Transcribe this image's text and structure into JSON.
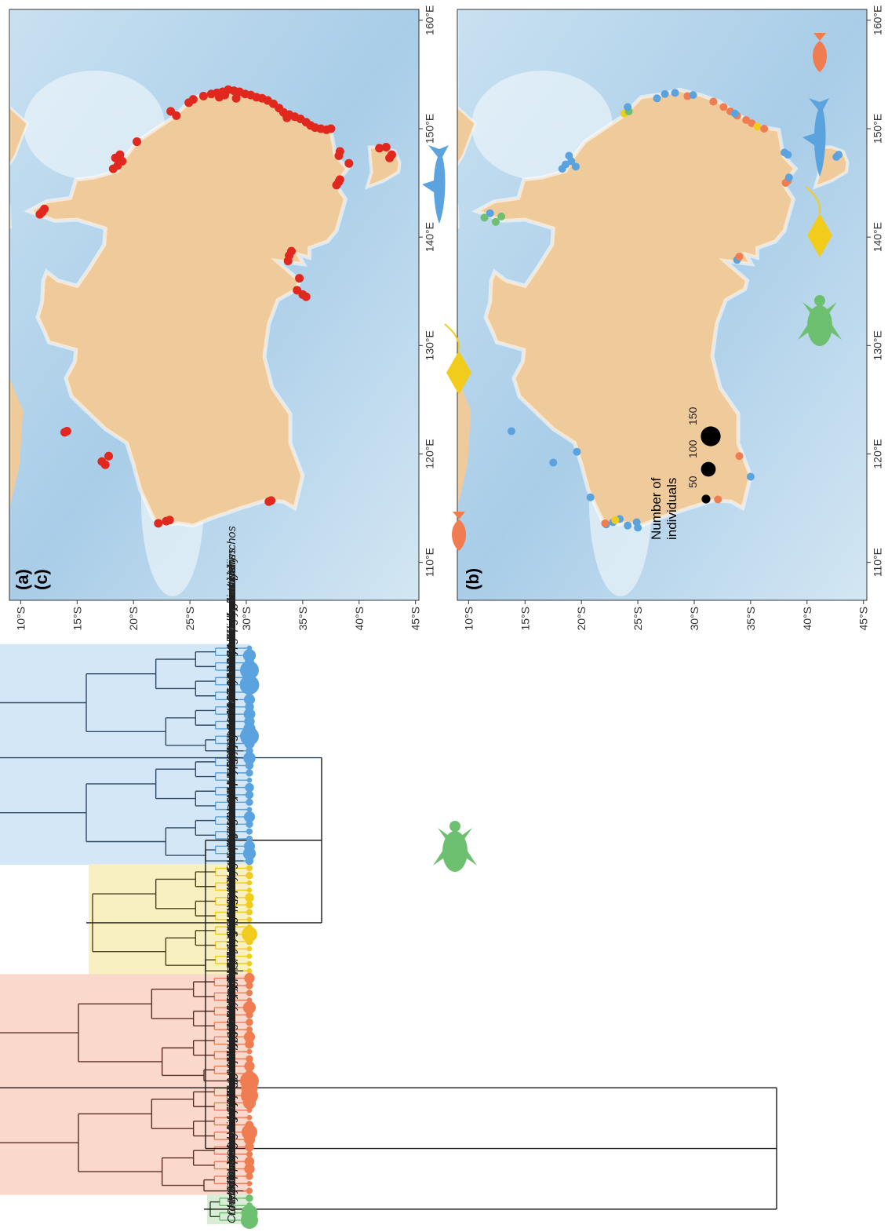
{
  "panels": {
    "a": "(a)",
    "b": "(b)",
    "c": "(c)"
  },
  "map_axes": {
    "lon_labels": [
      "110°E",
      "120°E",
      "130°E",
      "140°E",
      "150°E",
      "160°E"
    ],
    "lat_labels": [
      "10°S",
      "15°S",
      "20°S",
      "25°S",
      "30°S",
      "35°S",
      "40°S",
      "45°S"
    ]
  },
  "legend": {
    "title_line1": "Number of",
    "title_line2": "individuals",
    "sizes": [
      {
        "label": "50",
        "value": 50
      },
      {
        "label": "100",
        "value": 100
      },
      {
        "label": "150",
        "value": 150
      }
    ]
  },
  "colors": {
    "sharks": "#5aa3df",
    "rays": "#f2cc1c",
    "fish": "#f07c52",
    "reptiles": "#6dc06f",
    "detections_map_a": "#e0281f",
    "land": "#efcb9c",
    "ocean": "#bcd8ec",
    "shark_box": "#d4e7f6",
    "ray_box": "#f8f0c0",
    "fish_box": "#fbd8cc",
    "reptile_box": "#d8ecd6"
  },
  "icons": [
    "shark-icon",
    "ray-icon",
    "fish-icon",
    "turtle-icon"
  ],
  "species": [
    {
      "name": "Callorhinchus milii",
      "group": "sharks",
      "n": 10
    },
    {
      "name": "Negaprion acutidens",
      "group": "sharks",
      "n": 60
    },
    {
      "name": "Glyphis glyphis",
      "group": "sharks",
      "n": 35
    },
    {
      "name": "Carcharhinus amblyrhynchos",
      "group": "sharks",
      "n": 130
    },
    {
      "name": "Carcharhinus cautus",
      "group": "sharks",
      "n": 40
    },
    {
      "name": "Carcharhinus melanopterus",
      "group": "sharks",
      "n": 140
    },
    {
      "name": "Triaenodon obesus",
      "group": "sharks",
      "n": 20
    },
    {
      "name": "Carcharhinus amboinensis",
      "group": "sharks",
      "n": 45
    },
    {
      "name": "Carcharhinus brachyurus",
      "group": "sharks",
      "n": 30
    },
    {
      "name": "Carcharhinus albimarginatus",
      "group": "sharks",
      "n": 50
    },
    {
      "name": "Carcharhinus plumbeus",
      "group": "sharks",
      "n": 40
    },
    {
      "name": "Carcharhinus obscurus",
      "group": "sharks",
      "n": 55
    },
    {
      "name": "Carcharhinus leucas",
      "group": "sharks",
      "n": 130
    },
    {
      "name": "Carcharhinus limbatus",
      "group": "sharks",
      "n": 40
    },
    {
      "name": "Carcharhinus tilstoni",
      "group": "sharks",
      "n": 20
    },
    {
      "name": "Galeocerdo cuvier",
      "group": "sharks",
      "n": 55
    },
    {
      "name": "Sphyrna mokarran",
      "group": "sharks",
      "n": 25
    },
    {
      "name": "Rhizoprionodon taylori",
      "group": "sharks",
      "n": 20
    },
    {
      "name": "Loxodon macrorhinus",
      "group": "sharks",
      "n": 10
    },
    {
      "name": "Hemigaleus australiensis",
      "group": "sharks",
      "n": 30
    },
    {
      "name": "Mustelus antarcticus",
      "group": "sharks",
      "n": 25
    },
    {
      "name": "Galeorhinus galeus",
      "group": "sharks",
      "n": 20
    },
    {
      "name": "Cephaloscyllium laticeps",
      "group": "sharks",
      "n": 10
    },
    {
      "name": "Orectolobus maculatus",
      "group": "sharks",
      "n": 45
    },
    {
      "name": "Orectolobus halei",
      "group": "sharks",
      "n": 20
    },
    {
      "name": "Rhincodon typus",
      "group": "sharks",
      "n": 15
    },
    {
      "name": "Stegostoma fasciatum",
      "group": "sharks",
      "n": 15
    },
    {
      "name": "Carcharodon carcharias",
      "group": "sharks",
      "n": 45
    },
    {
      "name": "Heterodontus portusjacksoni",
      "group": "sharks",
      "n": 60
    },
    {
      "name": "Notorynchus cepedianus",
      "group": "sharks",
      "n": 25
    },
    {
      "name": "Himantura dalyensis",
      "group": "rays",
      "n": 15
    },
    {
      "name": "Himantura uarnak",
      "group": "rays",
      "n": 20
    },
    {
      "name": "Himantura astra",
      "group": "rays",
      "n": 10
    },
    {
      "name": "Pateobatis jenkinsii",
      "group": "rays",
      "n": 10
    },
    {
      "name": "Pateobatis fai",
      "group": "rays",
      "n": 30
    },
    {
      "name": "Hemitrygon fluviorum",
      "group": "rays",
      "n": 20
    },
    {
      "name": "Pastinachus sephen",
      "group": "rays",
      "n": 15
    },
    {
      "name": "Urogymnus asperrimus",
      "group": "rays",
      "n": 10
    },
    {
      "name": "Taeniura lymma",
      "group": "rays",
      "n": 10
    },
    {
      "name": "Mobula alfredi",
      "group": "rays",
      "n": 90
    },
    {
      "name": "Myliobatis australis",
      "group": "rays",
      "n": 20
    },
    {
      "name": "Trygonoptera testacea",
      "group": "rays",
      "n": 10
    },
    {
      "name": "Pristis pristis",
      "group": "rays",
      "n": 10
    },
    {
      "name": "Rhynchobatus laevis",
      "group": "rays",
      "n": 10
    },
    {
      "name": "Glaucostegus typus",
      "group": "rays",
      "n": 10
    },
    {
      "name": "Plectropomus maculatus",
      "group": "fish",
      "n": 40
    },
    {
      "name": "Plectropomus leopardus",
      "group": "fish",
      "n": 20
    },
    {
      "name": "Plectropomus laevis",
      "group": "fish",
      "n": 15
    },
    {
      "name": "Epinephelus multinotatus",
      "group": "fish",
      "n": 10
    },
    {
      "name": "Platycephalus fuscus",
      "group": "fish",
      "n": 60
    },
    {
      "name": "Platycephalus richardsoni",
      "group": "fish",
      "n": 20
    },
    {
      "name": "Platycephalus caeruleopunctatus",
      "group": "fish",
      "n": 20
    },
    {
      "name": "Girella tricuspidata",
      "group": "fish",
      "n": 15
    },
    {
      "name": "Girella elevata",
      "group": "fish",
      "n": 45
    },
    {
      "name": "Kyphosus sydneyanus",
      "group": "fish",
      "n": 30
    },
    {
      "name": "Kyphosus vaigiensis",
      "group": "fish",
      "n": 10
    },
    {
      "name": "Nemadactylus douglasii",
      "group": "fish",
      "n": 20
    },
    {
      "name": "Lethrinus miniatus",
      "group": "fish",
      "n": 40
    },
    {
      "name": "Lethrinus nebulosus",
      "group": "fish",
      "n": 25
    },
    {
      "name": "Acanthopagrus butcheri",
      "group": "fish",
      "n": 130
    },
    {
      "name": "Acanthopagrus australis",
      "group": "fish",
      "n": 100
    },
    {
      "name": "Chrysophrys auratus",
      "group": "fish",
      "n": 110
    },
    {
      "name": "Sillago ciliata",
      "group": "fish",
      "n": 60
    },
    {
      "name": "Lutjanus bohar",
      "group": "fish",
      "n": 10
    },
    {
      "name": "Lutjanus lutjanus",
      "group": "fish",
      "n": 10
    },
    {
      "name": "Lutjanus johnii",
      "group": "fish",
      "n": 25
    },
    {
      "name": "Lutjanus argentimaculatus",
      "group": "fish",
      "n": 90
    },
    {
      "name": "Achoerodus viridis",
      "group": "fish",
      "n": 45
    },
    {
      "name": "Scarus rivulatus",
      "group": "fish",
      "n": 30
    },
    {
      "name": "Seriola lalandi",
      "group": "fish",
      "n": 15
    },
    {
      "name": "Caranx ignobilis",
      "group": "fish",
      "n": 35
    },
    {
      "name": "Lates calcarifer",
      "group": "fish",
      "n": 40
    },
    {
      "name": "Carangoides fulvoguttatus",
      "group": "fish",
      "n": 20
    },
    {
      "name": "Thunnus maccoyii",
      "group": "fish",
      "n": 10
    },
    {
      "name": "Scomberomorus commerson",
      "group": "fish",
      "n": 15
    },
    {
      "name": "Hydrophis curtus",
      "group": "reptiles",
      "n": 20
    },
    {
      "name": "Hydrophis elegans",
      "group": "reptiles",
      "n": 15
    },
    {
      "name": "Chelonia mydas",
      "group": "reptiles",
      "n": 100
    },
    {
      "name": "Crocodylus porosus",
      "group": "reptiles",
      "n": 110
    }
  ],
  "map_a_points": [
    [
      113.6,
      -22.2
    ],
    [
      113.8,
      -22.9
    ],
    [
      113.9,
      -23.2
    ],
    [
      115.6,
      -32.0
    ],
    [
      115.7,
      -32.2
    ],
    [
      119.0,
      -17.5
    ],
    [
      119.3,
      -17.2
    ],
    [
      119.8,
      -17.8
    ],
    [
      122.0,
      -13.9
    ],
    [
      122.1,
      -14.1
    ],
    [
      134.5,
      -35.3
    ],
    [
      134.7,
      -35.0
    ],
    [
      135.1,
      -34.5
    ],
    [
      136.2,
      -34.7
    ],
    [
      137.8,
      -33.7
    ],
    [
      138.3,
      -33.8
    ],
    [
      138.7,
      -34.0
    ],
    [
      142.1,
      -11.7
    ],
    [
      142.3,
      -11.9
    ],
    [
      142.6,
      -12.1
    ],
    [
      144.8,
      -38.0
    ],
    [
      145.1,
      -38.2
    ],
    [
      145.3,
      -38.3
    ],
    [
      146.3,
      -18.2
    ],
    [
      146.6,
      -18.6
    ],
    [
      147.0,
      -19.0
    ],
    [
      147.3,
      -18.4
    ],
    [
      147.6,
      -18.8
    ],
    [
      146.8,
      -39.1
    ],
    [
      147.5,
      -38.2
    ],
    [
      147.9,
      -38.3
    ],
    [
      148.2,
      -41.8
    ],
    [
      147.3,
      -42.7
    ],
    [
      147.6,
      -42.9
    ],
    [
      148.3,
      -42.4
    ],
    [
      148.8,
      -20.3
    ],
    [
      151.2,
      -23.8
    ],
    [
      151.6,
      -23.3
    ],
    [
      152.4,
      -24.9
    ],
    [
      152.7,
      -25.3
    ],
    [
      153.0,
      -26.2
    ],
    [
      153.2,
      -26.9
    ],
    [
      153.3,
      -27.4
    ],
    [
      153.4,
      -27.9
    ],
    [
      153.6,
      -28.4
    ],
    [
      153.5,
      -28.9
    ],
    [
      153.4,
      -29.4
    ],
    [
      153.2,
      -29.9
    ],
    [
      153.1,
      -30.4
    ],
    [
      152.9,
      -30.9
    ],
    [
      152.8,
      -31.4
    ],
    [
      152.6,
      -31.9
    ],
    [
      152.3,
      -32.4
    ],
    [
      151.9,
      -32.9
    ],
    [
      151.5,
      -33.3
    ],
    [
      151.3,
      -33.8
    ],
    [
      151.1,
      -34.3
    ],
    [
      150.9,
      -34.8
    ],
    [
      150.6,
      -35.3
    ],
    [
      150.3,
      -35.7
    ],
    [
      150.1,
      -36.1
    ],
    [
      150.0,
      -36.6
    ],
    [
      149.9,
      -37.1
    ],
    [
      150.0,
      -37.5
    ],
    [
      152.9,
      -27.6
    ],
    [
      153.1,
      -28.1
    ],
    [
      152.8,
      -29.1
    ],
    [
      151.0,
      -33.6
    ]
  ],
  "map_b_points": [
    {
      "lon": 122.1,
      "lat": -13.8,
      "g": "sharks"
    },
    {
      "lon": 119.2,
      "lat": -17.5,
      "g": "sharks"
    },
    {
      "lon": 120.2,
      "lat": -19.6,
      "g": "sharks"
    },
    {
      "lon": 116.0,
      "lat": -20.8,
      "g": "sharks"
    },
    {
      "lon": 113.5,
      "lat": -22.2,
      "g": "sharks"
    },
    {
      "lon": 113.7,
      "lat": -22.8,
      "g": "sharks"
    },
    {
      "lon": 114.0,
      "lat": -23.4,
      "g": "sharks"
    },
    {
      "lon": 113.4,
      "lat": -24.1,
      "g": "sharks"
    },
    {
      "lon": 113.2,
      "lat": -25.0,
      "g": "sharks"
    },
    {
      "lon": 113.7,
      "lat": -24.9,
      "g": "sharks"
    },
    {
      "lon": 113.6,
      "lat": -22.1,
      "g": "fish"
    },
    {
      "lon": 113.9,
      "lat": -23.0,
      "g": "rays"
    },
    {
      "lon": 115.8,
      "lat": -32.1,
      "g": "fish"
    },
    {
      "lon": 117.9,
      "lat": -35.0,
      "g": "sharks"
    },
    {
      "lon": 119.8,
      "lat": -34.0,
      "g": "fish"
    },
    {
      "lon": 137.9,
      "lat": -33.8,
      "g": "sharks"
    },
    {
      "lon": 138.2,
      "lat": -34.0,
      "g": "fish"
    },
    {
      "lon": 141.8,
      "lat": -11.4,
      "g": "reptiles"
    },
    {
      "lon": 142.2,
      "lat": -11.9,
      "g": "sharks"
    },
    {
      "lon": 141.4,
      "lat": -12.4,
      "g": "reptiles"
    },
    {
      "lon": 141.9,
      "lat": -12.9,
      "g": "reptiles"
    },
    {
      "lon": 146.3,
      "lat": -18.3,
      "g": "sharks"
    },
    {
      "lon": 146.7,
      "lat": -18.6,
      "g": "sharks"
    },
    {
      "lon": 147.0,
      "lat": -19.1,
      "g": "sharks"
    },
    {
      "lon": 146.5,
      "lat": -19.5,
      "g": "sharks"
    },
    {
      "lon": 147.5,
      "lat": -18.9,
      "g": "sharks"
    },
    {
      "lon": 145.0,
      "lat": -38.1,
      "g": "fish"
    },
    {
      "lon": 145.2,
      "lat": -38.3,
      "g": "fish"
    },
    {
      "lon": 145.5,
      "lat": -38.4,
      "g": "sharks"
    },
    {
      "lon": 147.8,
      "lat": -38.0,
      "g": "sharks"
    },
    {
      "lon": 147.6,
      "lat": -38.3,
      "g": "sharks"
    },
    {
      "lon": 147.4,
      "lat": -42.6,
      "g": "sharks"
    },
    {
      "lon": 147.6,
      "lat": -42.8,
      "g": "sharks"
    },
    {
      "lon": 151.4,
      "lat": -23.8,
      "g": "rays"
    },
    {
      "lon": 151.6,
      "lat": -24.2,
      "g": "reptiles"
    },
    {
      "lon": 152.0,
      "lat": -24.1,
      "g": "sharks"
    },
    {
      "lon": 152.8,
      "lat": -26.7,
      "g": "sharks"
    },
    {
      "lon": 153.2,
      "lat": -27.4,
      "g": "sharks"
    },
    {
      "lon": 153.3,
      "lat": -28.3,
      "g": "sharks"
    },
    {
      "lon": 153.0,
      "lat": -29.4,
      "g": "fish"
    },
    {
      "lon": 153.1,
      "lat": -29.9,
      "g": "sharks"
    },
    {
      "lon": 152.5,
      "lat": -31.7,
      "g": "fish"
    },
    {
      "lon": 152.0,
      "lat": -32.6,
      "g": "fish"
    },
    {
      "lon": 151.6,
      "lat": -33.2,
      "g": "fish"
    },
    {
      "lon": 151.2,
      "lat": -33.8,
      "g": "fish"
    },
    {
      "lon": 151.4,
      "lat": -33.6,
      "g": "sharks"
    },
    {
      "lon": 150.8,
      "lat": -34.6,
      "g": "fish"
    },
    {
      "lon": 150.5,
      "lat": -35.1,
      "g": "fish"
    },
    {
      "lon": 150.2,
      "lat": -35.6,
      "g": "rays"
    },
    {
      "lon": 150.0,
      "lat": -36.2,
      "g": "fish"
    }
  ]
}
